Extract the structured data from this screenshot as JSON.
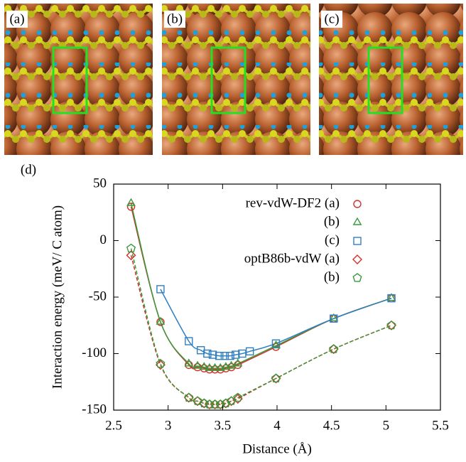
{
  "panels": [
    "(a)",
    "(b)",
    "(c)"
  ],
  "chart_data": {
    "type": "line",
    "label": "(d)",
    "xlabel": "Distance (Å)",
    "ylabel": "Interaction energy (meV/ C atom)",
    "xlim": [
      2.5,
      5.5
    ],
    "xticks": [
      2.5,
      3,
      3.5,
      4,
      4.5,
      5,
      5.5
    ],
    "ylim": [
      -150,
      50
    ],
    "yticks": [
      -150,
      -100,
      -50,
      0,
      50
    ],
    "legend": "upper right",
    "series": [
      {
        "name": "rev-vdW-DF2 (a)",
        "color": "#d0302a",
        "marker": "circle",
        "linestyle": "solid",
        "x": [
          2.66,
          2.93,
          3.19,
          3.27,
          3.33,
          3.38,
          3.43,
          3.48,
          3.53,
          3.58,
          3.64,
          3.99,
          4.52,
          5.05
        ],
        "values": [
          30,
          -72,
          -110,
          -112,
          -113,
          -114,
          -114,
          -114,
          -113,
          -112,
          -110,
          -94,
          -69,
          -51
        ]
      },
      {
        "name": "(b)",
        "color": "#3a9a3a",
        "marker": "triangle",
        "linestyle": "solid",
        "x": [
          2.66,
          2.93,
          3.19,
          3.27,
          3.33,
          3.38,
          3.43,
          3.48,
          3.53,
          3.58,
          3.64,
          3.99,
          4.52,
          5.05
        ],
        "values": [
          33,
          -72,
          -109,
          -111,
          -112,
          -113,
          -113,
          -113,
          -112,
          -111,
          -109,
          -93,
          -69,
          -51
        ]
      },
      {
        "name": "(c)",
        "color": "#2f7fc1",
        "marker": "square",
        "linestyle": "solid",
        "x": [
          2.93,
          3.19,
          3.3,
          3.36,
          3.41,
          3.47,
          3.52,
          3.57,
          3.62,
          3.68,
          3.75,
          3.99,
          4.52,
          5.05
        ],
        "values": [
          -43,
          -89,
          -97,
          -100,
          -101,
          -102,
          -102,
          -102,
          -101,
          -100,
          -98,
          -91,
          -69,
          -51
        ]
      },
      {
        "name": "optB86b-vdW (a)",
        "color": "#d0302a",
        "marker": "diamond",
        "linestyle": "dashed",
        "x": [
          2.66,
          2.93,
          3.19,
          3.27,
          3.33,
          3.38,
          3.43,
          3.48,
          3.53,
          3.58,
          3.64,
          3.99,
          4.52,
          5.05
        ],
        "values": [
          -13,
          -110,
          -139,
          -142,
          -144,
          -145,
          -145,
          -145,
          -144,
          -142,
          -140,
          -122,
          -96,
          -75
        ]
      },
      {
        "name": "(b)",
        "color": "#3a9a3a",
        "marker": "pentagon",
        "linestyle": "dashed",
        "x": [
          2.66,
          2.93,
          3.19,
          3.27,
          3.33,
          3.38,
          3.43,
          3.48,
          3.53,
          3.58,
          3.64,
          3.99,
          4.52,
          5.05
        ],
        "values": [
          -7,
          -109,
          -139,
          -142,
          -144,
          -145,
          -145,
          -145,
          -144,
          -142,
          -139,
          -122,
          -96,
          -75
        ]
      }
    ]
  }
}
